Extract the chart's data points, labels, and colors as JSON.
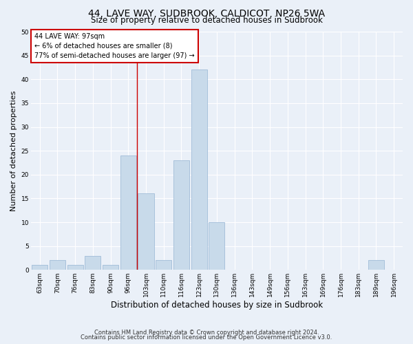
{
  "title_line1": "44, LAVE WAY, SUDBROOK, CALDICOT, NP26 5WA",
  "title_line2": "Size of property relative to detached houses in Sudbrook",
  "xlabel": "Distribution of detached houses by size in Sudbrook",
  "ylabel": "Number of detached properties",
  "categories": [
    "63sqm",
    "70sqm",
    "76sqm",
    "83sqm",
    "90sqm",
    "96sqm",
    "103sqm",
    "110sqm",
    "116sqm",
    "123sqm",
    "130sqm",
    "136sqm",
    "143sqm",
    "149sqm",
    "156sqm",
    "163sqm",
    "169sqm",
    "176sqm",
    "183sqm",
    "189sqm",
    "196sqm"
  ],
  "values": [
    1,
    2,
    1,
    3,
    1,
    24,
    16,
    2,
    23,
    42,
    10,
    0,
    0,
    0,
    0,
    0,
    0,
    0,
    0,
    2,
    0
  ],
  "bar_color": "#c8daea",
  "bar_edge_color": "#a0bcd8",
  "subject_bar_index": 5,
  "vline_color": "#cc0000",
  "annotation_title": "44 LAVE WAY: 97sqm",
  "annotation_line1": "← 6% of detached houses are smaller (8)",
  "annotation_line2": "77% of semi-detached houses are larger (97) →",
  "annotation_box_facecolor": "#ffffff",
  "annotation_box_edgecolor": "#cc0000",
  "ylim": [
    0,
    50
  ],
  "yticks": [
    0,
    5,
    10,
    15,
    20,
    25,
    30,
    35,
    40,
    45,
    50
  ],
  "footnote1": "Contains HM Land Registry data © Crown copyright and database right 2024.",
  "footnote2": "Contains public sector information licensed under the Open Government Licence v3.0.",
  "bg_color": "#eaf0f8",
  "grid_color": "#ffffff",
  "title1_fontsize": 10,
  "title2_fontsize": 8.5,
  "ylabel_fontsize": 8,
  "xlabel_fontsize": 8.5,
  "tick_fontsize": 6.5,
  "annot_fontsize": 7,
  "footnote_fontsize": 6
}
